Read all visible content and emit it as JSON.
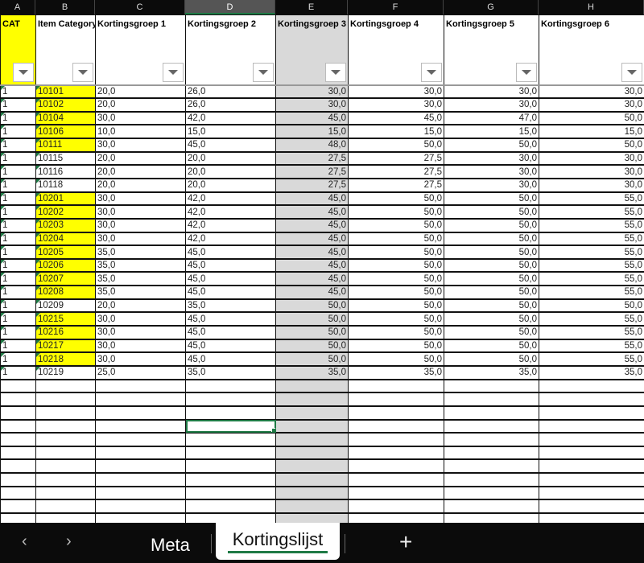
{
  "columns": [
    "A",
    "B",
    "C",
    "D",
    "E",
    "F",
    "G",
    "H"
  ],
  "selected_column": "D",
  "headers": [
    "CAT",
    "Item Category",
    "Kortingsgroep 1",
    "Kortingsgroep 2",
    "Kortingsgroep 3",
    "Kortingsgroep 4",
    "Kortingsgroep 5",
    "Kortingsgroep 6"
  ],
  "rows": [
    [
      "1",
      "10101",
      "20,0",
      "26,0",
      "30,0",
      "30,0",
      "30,0",
      "30,0",
      true
    ],
    [
      "1",
      "10102",
      "20,0",
      "26,0",
      "30,0",
      "30,0",
      "30,0",
      "30,0",
      true
    ],
    [
      "1",
      "10104",
      "30,0",
      "42,0",
      "45,0",
      "45,0",
      "47,0",
      "50,0",
      true
    ],
    [
      "1",
      "10106",
      "10,0",
      "15,0",
      "15,0",
      "15,0",
      "15,0",
      "15,0",
      true
    ],
    [
      "1",
      "10111",
      "30,0",
      "45,0",
      "48,0",
      "50,0",
      "50,0",
      "50,0",
      true
    ],
    [
      "1",
      "10115",
      "20,0",
      "20,0",
      "27,5",
      "27,5",
      "30,0",
      "30,0",
      false
    ],
    [
      "1",
      "10116",
      "20,0",
      "20,0",
      "27,5",
      "27,5",
      "30,0",
      "30,0",
      false
    ],
    [
      "1",
      "10118",
      "20,0",
      "20,0",
      "27,5",
      "27,5",
      "30,0",
      "30,0",
      false
    ],
    [
      "1",
      "10201",
      "30,0",
      "42,0",
      "45,0",
      "50,0",
      "50,0",
      "55,0",
      true
    ],
    [
      "1",
      "10202",
      "30,0",
      "42,0",
      "45,0",
      "50,0",
      "50,0",
      "55,0",
      true
    ],
    [
      "1",
      "10203",
      "30,0",
      "42,0",
      "45,0",
      "50,0",
      "50,0",
      "55,0",
      true
    ],
    [
      "1",
      "10204",
      "30,0",
      "42,0",
      "45,0",
      "50,0",
      "50,0",
      "55,0",
      true
    ],
    [
      "1",
      "10205",
      "35,0",
      "45,0",
      "45,0",
      "50,0",
      "50,0",
      "55,0",
      true
    ],
    [
      "1",
      "10206",
      "35,0",
      "45,0",
      "45,0",
      "50,0",
      "50,0",
      "55,0",
      true
    ],
    [
      "1",
      "10207",
      "35,0",
      "45,0",
      "45,0",
      "50,0",
      "50,0",
      "55,0",
      true
    ],
    [
      "1",
      "10208",
      "35,0",
      "45,0",
      "45,0",
      "50,0",
      "50,0",
      "55,0",
      true
    ],
    [
      "1",
      "10209",
      "20,0",
      "35,0",
      "50,0",
      "50,0",
      "50,0",
      "50,0",
      false
    ],
    [
      "1",
      "10215",
      "30,0",
      "45,0",
      "50,0",
      "50,0",
      "50,0",
      "55,0",
      true
    ],
    [
      "1",
      "10216",
      "30,0",
      "45,0",
      "50,0",
      "50,0",
      "50,0",
      "55,0",
      true
    ],
    [
      "1",
      "10217",
      "30,0",
      "45,0",
      "50,0",
      "50,0",
      "50,0",
      "55,0",
      true
    ],
    [
      "1",
      "10218",
      "30,0",
      "45,0",
      "50,0",
      "50,0",
      "50,0",
      "55,0",
      true
    ],
    [
      "1",
      "10219",
      "25,0",
      "35,0",
      "35,0",
      "35,0",
      "35,0",
      "35,0",
      false
    ]
  ],
  "colors": {
    "highlight": "#ffff00",
    "accent": "#1e7a45",
    "column_shade": "#d9d9d9"
  },
  "sheet_tabs": {
    "tabs": [
      {
        "label": "Meta"
      },
      {
        "label": "Kortingslijst",
        "active": true
      }
    ],
    "prev_icon": "chevron-left-icon",
    "next_icon": "chevron-right-icon",
    "add_icon": "plus-icon"
  }
}
